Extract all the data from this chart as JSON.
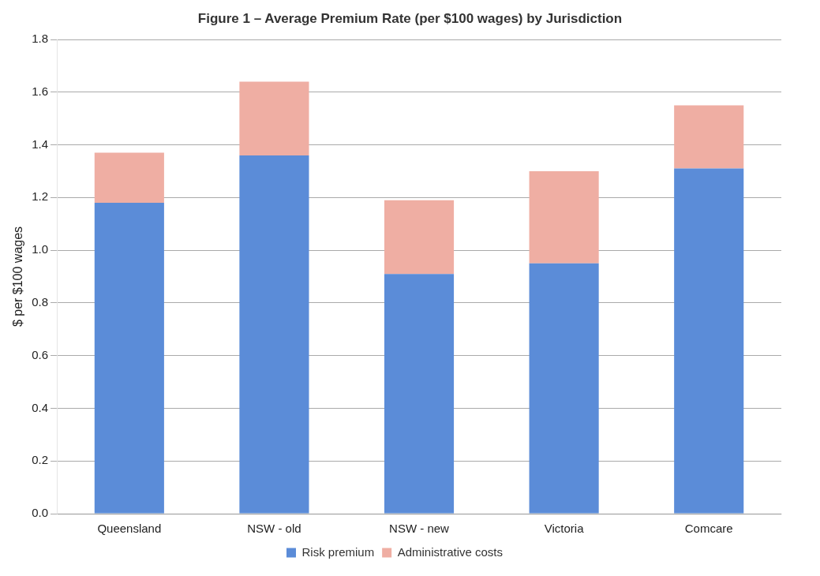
{
  "chart_data": {
    "type": "bar",
    "title": "Figure 1 – Average Premium Rate (per $100 wages) by Jurisdiction",
    "ylabel": "$ per $100 wages",
    "categories": [
      "Queensland",
      "NSW - old",
      "NSW - new",
      "Victoria",
      "Comcare"
    ],
    "series": [
      {
        "name": "Risk premium",
        "color": "#5b8cd8",
        "values": [
          1.18,
          1.36,
          0.91,
          0.95,
          1.31
        ]
      },
      {
        "name": "Administrative costs",
        "color": "#efaea3",
        "values": [
          0.19,
          0.28,
          0.28,
          0.35,
          0.24
        ]
      }
    ],
    "stacked": true,
    "ylim": [
      0,
      1.8
    ],
    "yticks": [
      {
        "value": 0,
        "label": "0.0"
      },
      {
        "value": 0.2,
        "label": "0.2"
      },
      {
        "value": 0.4,
        "label": "0.4"
      },
      {
        "value": 0.6,
        "label": "0.6"
      },
      {
        "value": 0.8,
        "label": "0.8"
      },
      {
        "value": 1,
        "label": "1.0"
      },
      {
        "value": 1.2,
        "label": "1.2"
      },
      {
        "value": 1.4,
        "label": "1.4"
      },
      {
        "value": 1.6,
        "label": "1.6"
      },
      {
        "value": 1.8,
        "label": "1.8"
      }
    ],
    "grid": "y",
    "legend": "bottom"
  }
}
